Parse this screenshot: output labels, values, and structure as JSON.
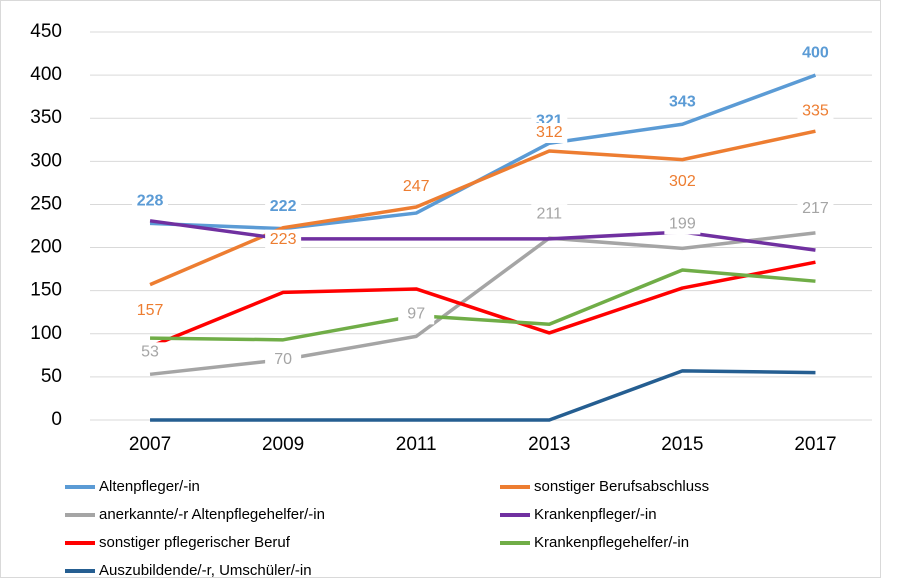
{
  "chart_data": {
    "type": "line",
    "categories": [
      "2007",
      "2009",
      "2011",
      "2013",
      "2015",
      "2017"
    ],
    "ylim": [
      0,
      450
    ],
    "yticks": [
      0,
      50,
      100,
      150,
      200,
      250,
      300,
      350,
      400,
      450
    ],
    "grid": true,
    "legend": "bottom",
    "series": [
      {
        "name": "Altenpfleger/-in",
        "color": "#5b9bd5",
        "values": [
          228,
          222,
          240,
          321,
          343,
          400
        ],
        "value_labels": [
          "228",
          "222",
          null,
          "321",
          "343",
          "400"
        ]
      },
      {
        "name": "sonstiger Berufsabschluss",
        "color": "#ed7d31",
        "values": [
          157,
          223,
          247,
          312,
          302,
          335
        ],
        "value_labels": [
          "157",
          "223",
          "247",
          "312",
          "302",
          "335"
        ]
      },
      {
        "name": "anerkannte/-r Altenpflegehelfer/-in",
        "color": "#a5a5a5",
        "values": [
          53,
          70,
          97,
          211,
          199,
          217
        ],
        "value_labels": [
          "53",
          "70",
          "97",
          "211",
          "199",
          "217"
        ]
      },
      {
        "name": "Krankenpfleger/-in",
        "color": "#7030a0",
        "values": [
          231,
          210,
          210,
          210,
          218,
          197
        ]
      },
      {
        "name": "sonstiger pflegerischer Beruf",
        "color": "#ff0000",
        "values": [
          85,
          148,
          152,
          101,
          153,
          183
        ]
      },
      {
        "name": "Krankenpflegehelfer/-in",
        "color": "#70ad47",
        "values": [
          95,
          93,
          121,
          111,
          174,
          161
        ]
      },
      {
        "name": "Auszubildende/-r, Umschüler/-in",
        "color": "#255e91",
        "values": [
          0,
          0,
          0,
          0,
          57,
          55
        ]
      }
    ]
  }
}
